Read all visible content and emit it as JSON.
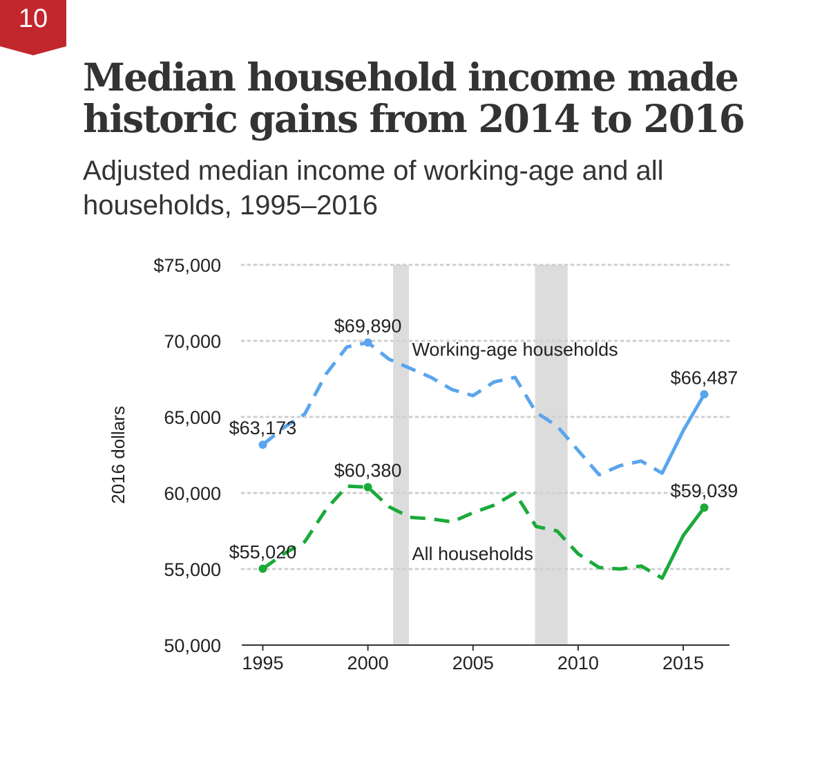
{
  "badge": {
    "number": "10",
    "color": "#c1272d"
  },
  "title": "Median household income made historic gains from 2014 to 2016",
  "subtitle": "Adjusted median income of working-age and all households, 1995–2016",
  "chart_data": {
    "type": "line",
    "ylabel": "2016 dollars",
    "xlabel": "",
    "xlim": [
      1994,
      2017.2
    ],
    "ylim": [
      50000,
      75000
    ],
    "x_ticks": [
      {
        "value": 1995,
        "label": "1995"
      },
      {
        "value": 2000,
        "label": "2000"
      },
      {
        "value": 2005,
        "label": "2005"
      },
      {
        "value": 2010,
        "label": "2010"
      },
      {
        "value": 2015,
        "label": "2015"
      }
    ],
    "y_ticks": [
      {
        "value": 75000,
        "label": "$75,000"
      },
      {
        "value": 70000,
        "label": "70,000"
      },
      {
        "value": 65000,
        "label": "65,000"
      },
      {
        "value": 60000,
        "label": "60,000"
      },
      {
        "value": 55000,
        "label": "55,000"
      },
      {
        "value": 50000,
        "label": "50,000"
      }
    ],
    "grid": "horizontal dotted",
    "recession_bands": [
      {
        "start": 2001.2,
        "end": 2001.95,
        "color": "#dcdcdc"
      },
      {
        "start": 2007.95,
        "end": 2009.5,
        "color": "#dcdcdc"
      }
    ],
    "x": [
      1995,
      1996,
      1997,
      1998,
      1999,
      2000,
      2001,
      2002,
      2003,
      2004,
      2005,
      2006,
      2007,
      2008,
      2009,
      2010,
      2011,
      2012,
      2013,
      2014,
      2015,
      2016
    ],
    "series": [
      {
        "name": "Working-age households",
        "color": "#5aa5ee",
        "dashed_through": 2014,
        "values": [
          63173,
          64300,
          65200,
          67800,
          69600,
          69890,
          68800,
          68200,
          67600,
          66800,
          66400,
          67300,
          67600,
          65300,
          64400,
          62800,
          61200,
          61800,
          62100,
          61300,
          64100,
          66487
        ],
        "point_labels": [
          {
            "x": 1995,
            "text": "$63,173"
          },
          {
            "x": 2000,
            "text": "$69,890"
          },
          {
            "x": 2016,
            "text": "$66,487"
          }
        ]
      },
      {
        "name": "All households",
        "color": "#1aaa3a",
        "dashed_through": 2014,
        "values": [
          55020,
          56000,
          56800,
          58900,
          60450,
          60380,
          59100,
          58400,
          58300,
          58100,
          58700,
          59200,
          60000,
          57800,
          57500,
          56000,
          55100,
          55000,
          55200,
          54400,
          57200,
          59039
        ],
        "point_labels": [
          {
            "x": 1995,
            "text": "$55,020"
          },
          {
            "x": 2000,
            "text": "$60,380"
          },
          {
            "x": 2016,
            "text": "$59,039"
          }
        ]
      }
    ]
  }
}
